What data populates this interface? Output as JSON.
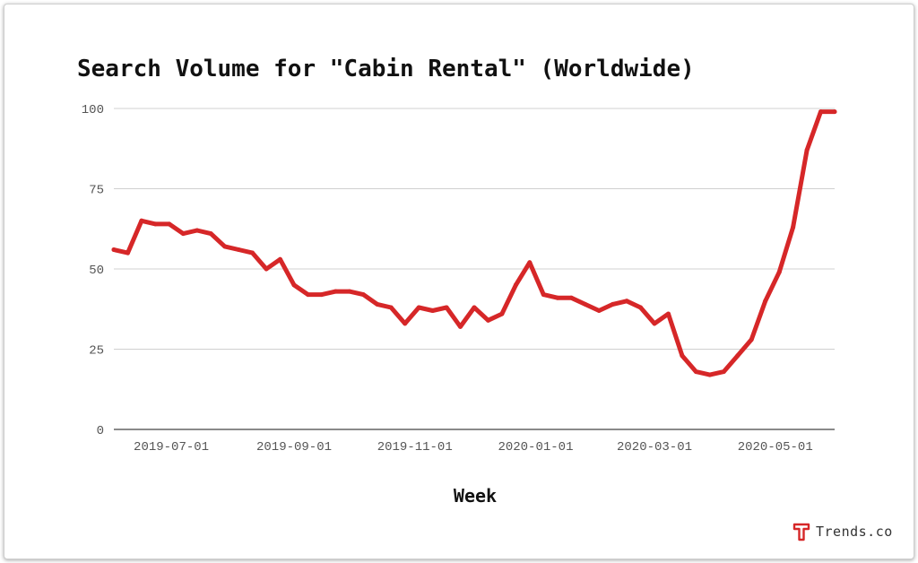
{
  "chart_data": {
    "type": "line",
    "title": "Search Volume for \"Cabin Rental\" (Worldwide)",
    "xlabel": "Week",
    "ylabel": "",
    "ylim": [
      0,
      100
    ],
    "yticks": [
      0,
      25,
      50,
      75,
      100
    ],
    "xticks": [
      "2019-07-01",
      "2019-09-01",
      "2019-11-01",
      "2020-01-01",
      "2020-03-01",
      "2020-05-01"
    ],
    "grid": true,
    "legend": "none",
    "series": [
      {
        "color": "#d62728",
        "x": [
          "2019-06-02",
          "2019-06-09",
          "2019-06-16",
          "2019-06-23",
          "2019-06-30",
          "2019-07-07",
          "2019-07-14",
          "2019-07-21",
          "2019-07-28",
          "2019-08-04",
          "2019-08-11",
          "2019-08-18",
          "2019-08-25",
          "2019-09-01",
          "2019-09-08",
          "2019-09-15",
          "2019-09-22",
          "2019-09-29",
          "2019-10-06",
          "2019-10-13",
          "2019-10-20",
          "2019-10-27",
          "2019-11-03",
          "2019-11-10",
          "2019-11-17",
          "2019-11-24",
          "2019-12-01",
          "2019-12-08",
          "2019-12-15",
          "2019-12-22",
          "2019-12-29",
          "2020-01-05",
          "2020-01-12",
          "2020-01-19",
          "2020-01-26",
          "2020-02-02",
          "2020-02-09",
          "2020-02-16",
          "2020-02-23",
          "2020-03-01",
          "2020-03-08",
          "2020-03-15",
          "2020-03-22",
          "2020-03-29",
          "2020-04-05",
          "2020-04-12",
          "2020-04-19",
          "2020-04-26",
          "2020-05-03",
          "2020-05-10",
          "2020-05-17",
          "2020-05-24",
          "2020-05-31"
        ],
        "values": [
          56,
          55,
          65,
          64,
          64,
          61,
          62,
          61,
          57,
          56,
          55,
          50,
          53,
          45,
          42,
          42,
          43,
          43,
          42,
          39,
          38,
          33,
          38,
          37,
          38,
          32,
          38,
          34,
          36,
          45,
          52,
          42,
          41,
          41,
          39,
          37,
          39,
          40,
          38,
          33,
          36,
          23,
          18,
          17,
          18,
          23,
          28,
          40,
          49,
          63,
          87,
          99,
          99
        ]
      }
    ]
  },
  "watermark": {
    "text": "Trends.co",
    "logo_icon": "trends-logo-icon",
    "logo_color": "#d62728"
  }
}
